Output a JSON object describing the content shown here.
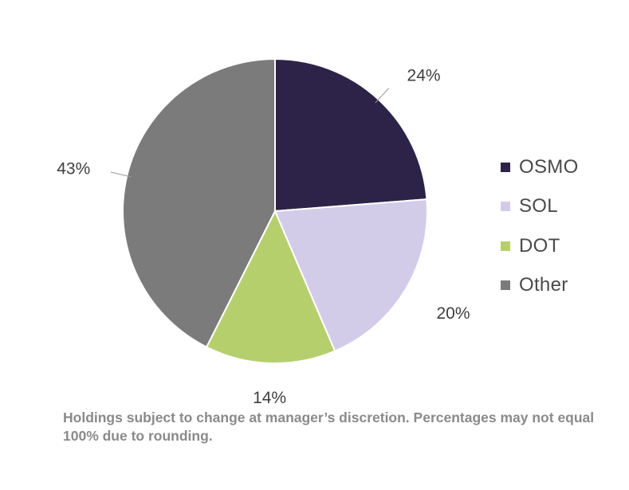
{
  "chart_data": {
    "type": "pie",
    "slices": [
      {
        "name": "OSMO",
        "value": 24,
        "label": "24%",
        "color": "#2d2348"
      },
      {
        "name": "SOL",
        "value": 20,
        "label": "20%",
        "color": "#d3cce8"
      },
      {
        "name": "DOT",
        "value": 14,
        "label": "14%",
        "color": "#b6cf6d"
      },
      {
        "name": "Other",
        "value": 43,
        "label": "43%",
        "color": "#7b7b7b"
      }
    ],
    "start_angle": "12 o'clock",
    "direction": "clockwise",
    "slice_border_color": "#ffffff",
    "legend_position": "right"
  },
  "legend": {
    "items": [
      {
        "label": "OSMO",
        "color": "#2d2348"
      },
      {
        "label": "SOL",
        "color": "#d3cce8"
      },
      {
        "label": "DOT",
        "color": "#b6cf6d"
      },
      {
        "label": "Other",
        "color": "#7b7b7b"
      }
    ]
  },
  "footnote": {
    "text": "Holdings subject to change at manager’s discretion.  Percentages may not equal 100% due to rounding."
  }
}
